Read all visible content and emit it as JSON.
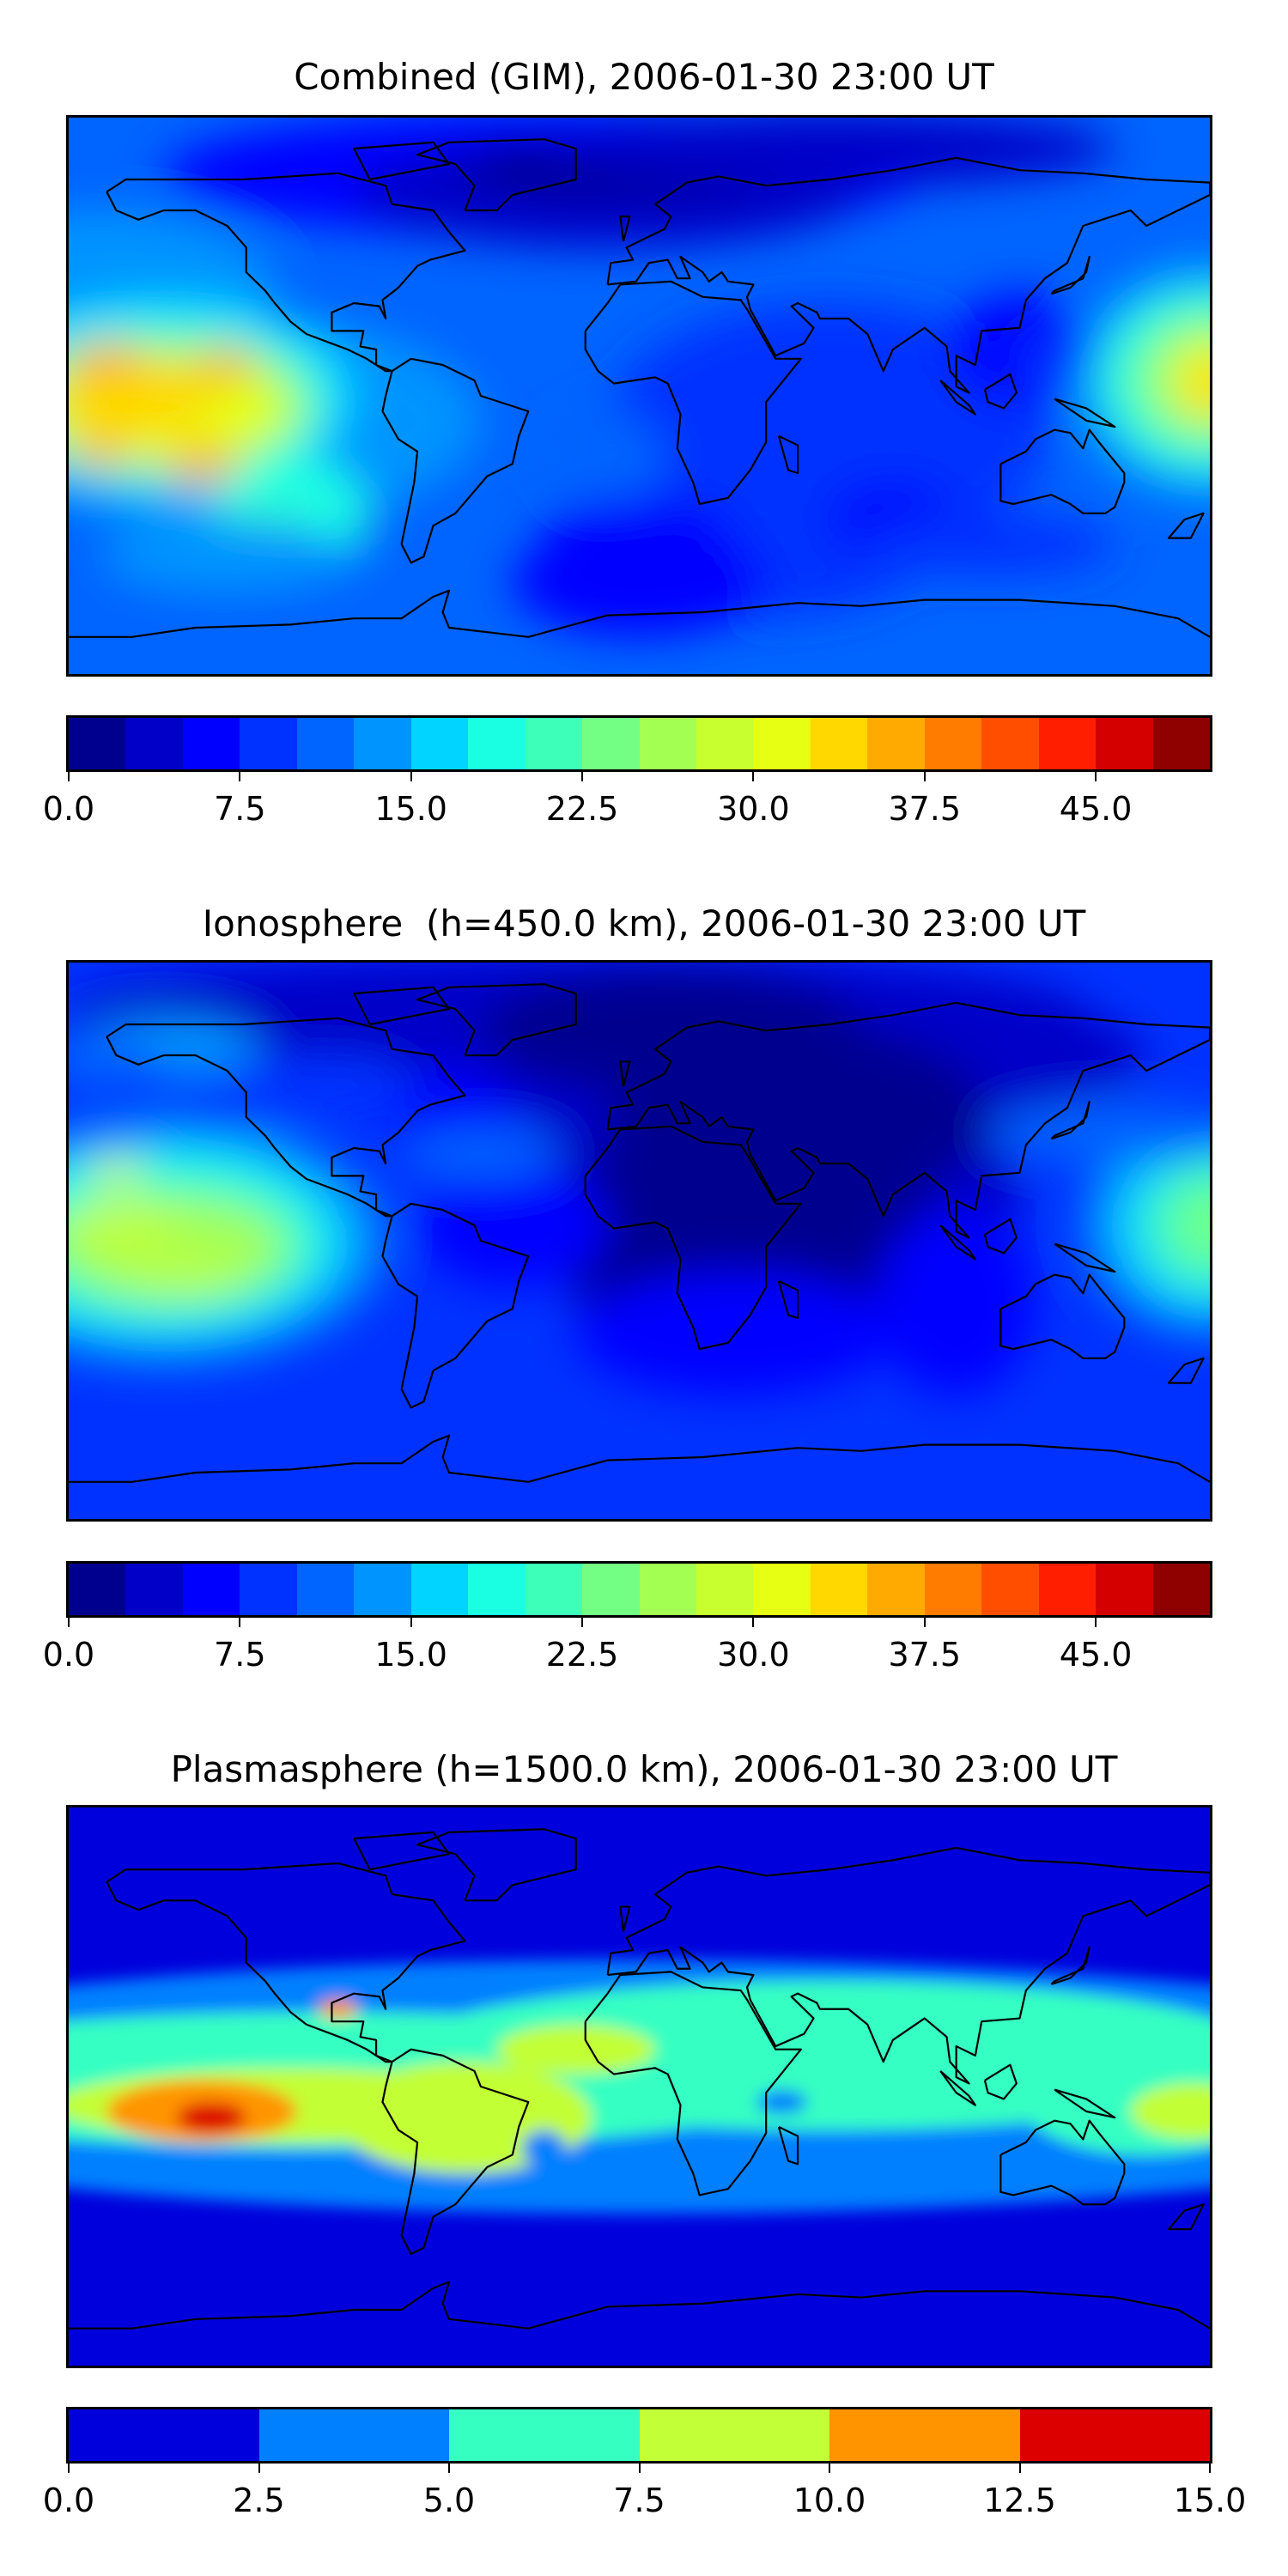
{
  "chart_data": [
    {
      "type": "heatmap",
      "title": "Combined (GIM), 2006-01-30 23:00 UT",
      "projection": "equirectangular world map with coastlines",
      "colorbar": {
        "range": [
          0,
          50
        ],
        "step": 2.5,
        "ticks": [
          0,
          7.5,
          15,
          22.5,
          30,
          37.5,
          45
        ],
        "tick_labels": [
          "0.0",
          "7.5",
          "15.0",
          "22.5",
          "30.0",
          "37.5",
          "45.0"
        ],
        "colors": [
          "#00008f",
          "#0000c8",
          "#0000ff",
          "#0032ff",
          "#0064ff",
          "#0094ff",
          "#00d4ff",
          "#1affe2",
          "#3dffb9",
          "#73ff83",
          "#a4ff53",
          "#c8ff2e",
          "#e6ff12",
          "#ffd800",
          "#ffaa00",
          "#ff7c00",
          "#ff4e00",
          "#ff1e00",
          "#d40000",
          "#8f0000"
        ]
      },
      "features": {
        "max_region": "central/south Pacific ~35-40",
        "min_region": "Arctic/North Atlantic ~0-2.5",
        "background": "~10-12.5"
      }
    },
    {
      "type": "heatmap",
      "title": "Ionosphere  (h=450.0 km), 2006-01-30 23:00 UT",
      "projection": "equirectangular world map with coastlines",
      "colorbar": {
        "range": [
          0,
          50
        ],
        "step": 2.5,
        "ticks": [
          0,
          7.5,
          15,
          22.5,
          30,
          37.5,
          45
        ],
        "tick_labels": [
          "0.0",
          "7.5",
          "15.0",
          "22.5",
          "30.0",
          "37.5",
          "45.0"
        ],
        "colors": [
          "#00008f",
          "#0000c8",
          "#0000ff",
          "#0032ff",
          "#0064ff",
          "#0094ff",
          "#00d4ff",
          "#1affe2",
          "#3dffb9",
          "#73ff83",
          "#a4ff53",
          "#c8ff2e",
          "#e6ff12",
          "#ffd800",
          "#ffaa00",
          "#ff7c00",
          "#ff4e00",
          "#ff1e00",
          "#d40000",
          "#8f0000"
        ]
      },
      "features": {
        "max_region": "central Pacific ~30-32.5",
        "min_region": "Africa/Eurasia night side ~0-2.5",
        "background": "~7.5-10"
      }
    },
    {
      "type": "heatmap",
      "title": "Plasmasphere (h=1500.0 km), 2006-01-30 23:00 UT",
      "projection": "equirectangular world map with coastlines",
      "colorbar": {
        "range": [
          0,
          15
        ],
        "step": 2.5,
        "ticks": [
          0,
          2.5,
          5,
          7.5,
          10,
          12.5,
          15
        ],
        "tick_labels": [
          "0.0",
          "2.5",
          "5.0",
          "7.5",
          "10.0",
          "12.5",
          "15.0"
        ],
        "colors": [
          "#0000dc",
          "#0080ff",
          "#36ffc2",
          "#c2ff36",
          "#ff9400",
          "#dc0000"
        ]
      },
      "features": {
        "max_region": "eastern Pacific ~12.5-15",
        "min_region": "high latitudes ~0-2.5",
        "band": "equatorial band 5-10"
      }
    }
  ]
}
